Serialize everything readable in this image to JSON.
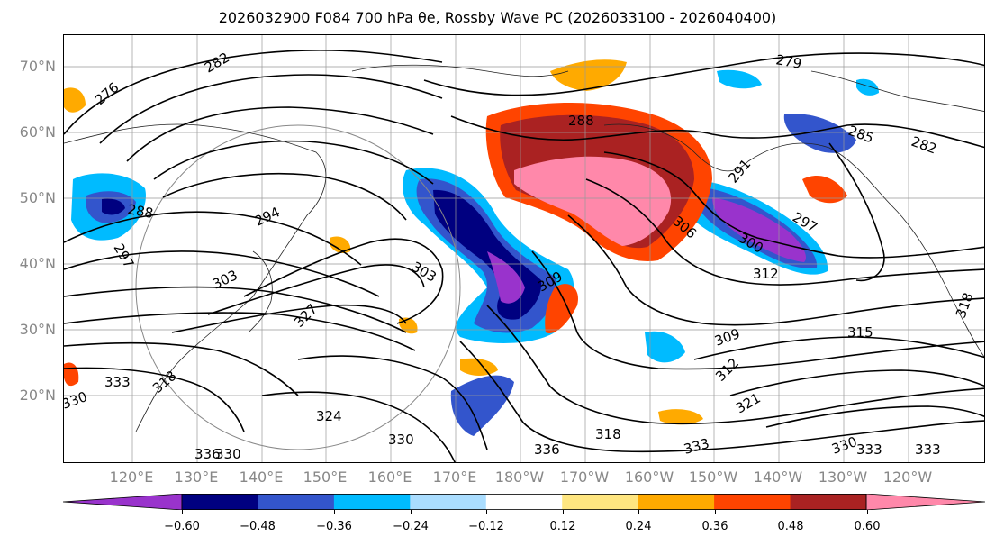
{
  "title": "2026032900 F084 700 hPa θe, Rossby Wave PC (2026033100 - 2026040400)",
  "lat_labels": [
    "70°N",
    "60°N",
    "50°N",
    "40°N",
    "30°N",
    "20°N"
  ],
  "lon_labels": [
    "120°E",
    "130°E",
    "140°E",
    "150°E",
    "160°E",
    "170°E",
    "180°W",
    "170°W",
    "160°W",
    "150°W",
    "140°W",
    "130°W",
    "120°W"
  ],
  "contour_labels": [
    "276",
    "282",
    "279",
    "285",
    "282",
    "288",
    "291",
    "288",
    "294",
    "297",
    "303",
    "327",
    "300",
    "306",
    "309",
    "312",
    "297",
    "303",
    "309",
    "315",
    "312",
    "318",
    "321",
    "333",
    "330",
    "324",
    "330",
    "336",
    "318",
    "333",
    "330",
    "333",
    "333",
    "336",
    "330",
    "318"
  ],
  "colorbar": {
    "colors": [
      "#9933cc",
      "#000080",
      "#3355cc",
      "#00bbff",
      "#aaddff",
      "#ffffff",
      "#ffe680",
      "#ffaa00",
      "#ff4400",
      "#aa2222",
      "#ff88aa"
    ],
    "ticks": [
      "−0.60",
      "−0.48",
      "−0.36",
      "−0.24",
      "−0.12",
      "0.12",
      "0.24",
      "0.36",
      "0.48",
      "0.60"
    ]
  }
}
